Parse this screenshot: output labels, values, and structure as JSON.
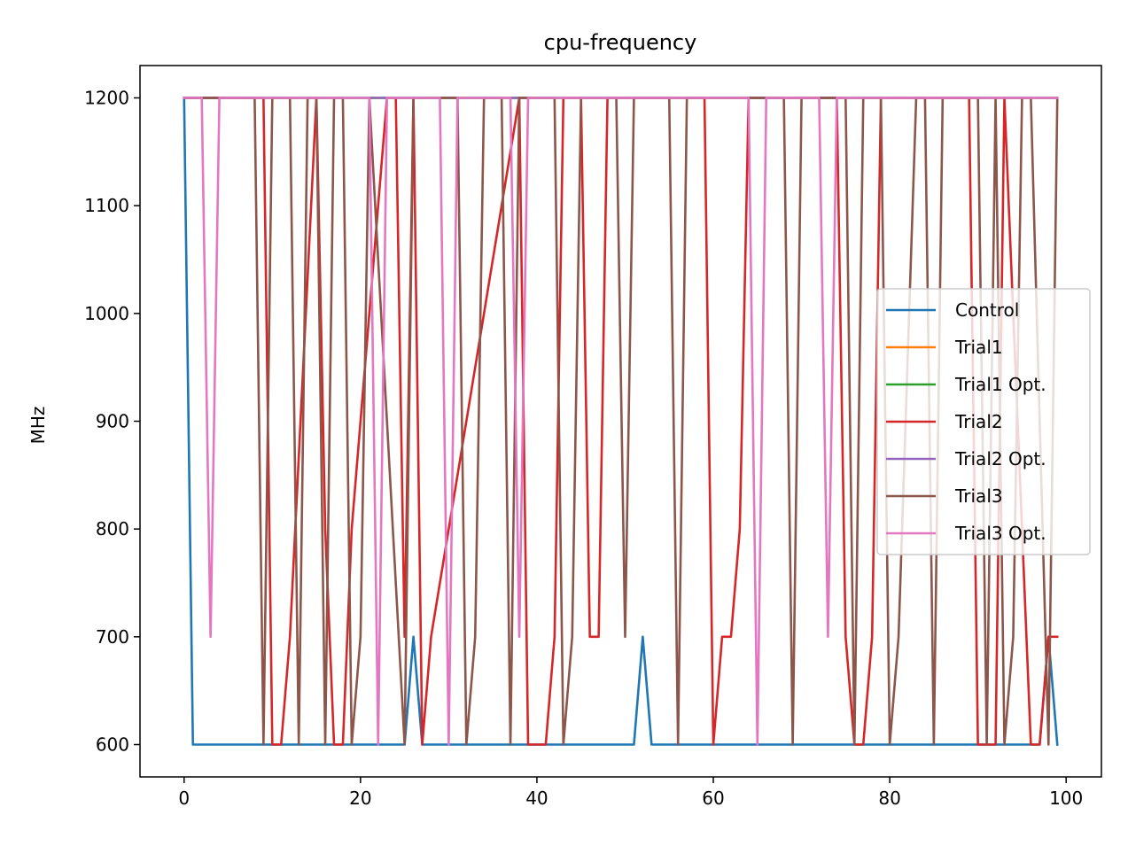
{
  "chart_data": {
    "type": "line",
    "title": "cpu-frequency",
    "xlabel": "",
    "ylabel": "MHz",
    "xlim": [
      -5,
      104
    ],
    "ylim": [
      570,
      1230
    ],
    "x_ticks": [
      0,
      20,
      40,
      60,
      80,
      100
    ],
    "y_ticks": [
      600,
      700,
      800,
      900,
      1000,
      1100,
      1200
    ],
    "grid": false,
    "legend_position": "center-right",
    "series": [
      {
        "name": "Control",
        "color": "#1f77b4",
        "x": [
          0,
          1,
          25,
          26,
          27,
          51,
          52,
          53,
          97,
          98,
          99
        ],
        "y": [
          1200,
          600,
          600,
          700,
          600,
          600,
          700,
          600,
          600,
          700,
          600
        ]
      },
      {
        "name": "Trial1",
        "color": "#ff7f0e",
        "x": [
          0,
          99
        ],
        "y": [
          1200,
          1200
        ]
      },
      {
        "name": "Trial1 Opt.",
        "color": "#2ca02c",
        "x": [
          0,
          99
        ],
        "y": [
          1200,
          1200
        ]
      },
      {
        "name": "Trial2",
        "color": "#d62728",
        "x": [
          0,
          9,
          10,
          11,
          12,
          15,
          16,
          17,
          18,
          19,
          23,
          24,
          25,
          26,
          27,
          28,
          38,
          39,
          41,
          42,
          43,
          45,
          46,
          47,
          48,
          59,
          60,
          61,
          62,
          63,
          64,
          74,
          75,
          76,
          77,
          78,
          79,
          89,
          90,
          91,
          92,
          93,
          96,
          97,
          98,
          99
        ],
        "y": [
          1200,
          1200,
          600,
          600,
          700,
          1200,
          800,
          600,
          600,
          800,
          1200,
          1200,
          700,
          1200,
          600,
          700,
          1200,
          600,
          600,
          700,
          1200,
          1200,
          700,
          700,
          1200,
          1200,
          600,
          700,
          700,
          800,
          1200,
          1200,
          700,
          600,
          600,
          700,
          1200,
          1200,
          600,
          600,
          600,
          1200,
          600,
          600,
          700,
          700
        ]
      },
      {
        "name": "Trial2 Opt.",
        "color": "#9467bd",
        "x": [
          0,
          99
        ],
        "y": [
          1200,
          1200
        ]
      },
      {
        "name": "Trial3",
        "color": "#8c564b",
        "x": [
          0,
          8,
          9,
          10,
          12,
          13,
          14,
          15,
          16,
          17,
          18,
          19,
          20,
          21,
          25,
          26,
          30,
          31,
          32,
          33,
          34,
          35,
          36,
          37,
          38,
          40,
          42,
          43,
          44,
          45,
          46,
          48,
          49,
          50,
          51,
          54,
          55,
          56,
          57,
          59,
          66,
          67,
          68,
          69,
          70,
          75,
          76,
          77,
          79,
          80,
          81,
          83,
          84,
          85,
          86,
          87,
          88,
          90,
          91,
          92,
          93,
          94,
          95,
          96,
          98,
          99
        ],
        "y": [
          1200,
          1200,
          600,
          1200,
          1200,
          600,
          1200,
          1200,
          600,
          1200,
          1200,
          600,
          700,
          1200,
          600,
          1200,
          1200,
          1200,
          600,
          700,
          1200,
          1200,
          1200,
          600,
          1200,
          1200,
          1200,
          600,
          700,
          1200,
          1200,
          1200,
          1200,
          700,
          1200,
          1200,
          1200,
          600,
          1200,
          1200,
          1200,
          1200,
          1200,
          600,
          1200,
          1200,
          600,
          1200,
          1200,
          600,
          700,
          1200,
          1200,
          600,
          1200,
          1200,
          1200,
          1200,
          600,
          1200,
          600,
          700,
          1200,
          1200,
          600,
          1200
        ]
      },
      {
        "name": "Trial3 Opt.",
        "color": "#e377c2",
        "x": [
          0,
          2,
          3,
          4,
          21,
          22,
          23,
          29,
          30,
          31,
          37,
          38,
          39,
          64,
          65,
          66,
          72,
          73,
          74,
          99
        ],
        "y": [
          1200,
          1200,
          700,
          1200,
          1200,
          600,
          1200,
          1200,
          600,
          1200,
          1200,
          700,
          1200,
          1200,
          600,
          1200,
          1200,
          700,
          1200,
          1200
        ]
      }
    ]
  }
}
